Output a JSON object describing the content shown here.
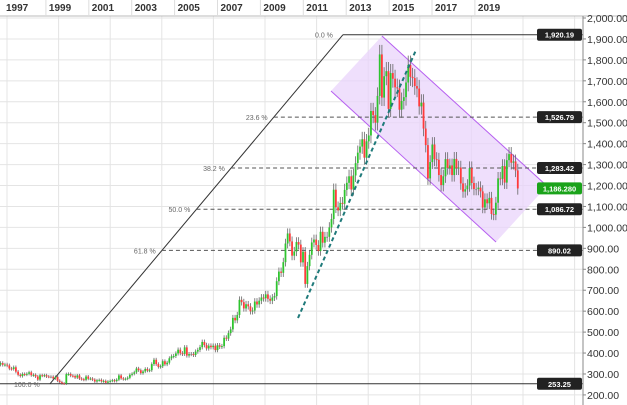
{
  "chart_data": {
    "type": "candlestick",
    "title": "",
    "x_tick_labels": [
      "1997",
      "1999",
      "2001",
      "2003",
      "2005",
      "2007",
      "2009",
      "2011",
      "2013",
      "2015",
      "2017",
      "2019"
    ],
    "y_tick_labels": [
      "2,000.00",
      "1,900.00",
      "1,800.00",
      "1,700.00",
      "1,600.00",
      "1,500.00",
      "1,400.00",
      "1,300.00",
      "1,200.00",
      "1,100.00",
      "1,000.00",
      "900.00",
      "800.00",
      "700.00",
      "600.00",
      "500.00",
      "400.00",
      "300.00",
      "200.00"
    ],
    "ylim": [
      200,
      2000
    ],
    "grid": true,
    "colors": {
      "up": "#2fc42f",
      "down": "#ff3b3b",
      "neutral": "#888888",
      "channel_fill": "#e9d4fb",
      "channel_line": "#b65ff0",
      "trendline": "#1f7a7a",
      "last_price": "#1aa31a",
      "tag": "#222222"
    },
    "series_start": "1997-01",
    "frequency": "monthly",
    "closes": [
      355,
      345,
      352,
      344,
      345,
      341,
      326,
      324,
      332,
      311,
      296,
      290,
      300,
      297,
      301,
      308,
      294,
      296,
      288,
      273,
      294,
      292,
      294,
      288,
      287,
      287,
      279,
      286,
      268,
      261,
      255,
      254,
      299,
      300,
      292,
      290,
      283,
      293,
      278,
      275,
      272,
      288,
      277,
      278,
      273,
      264,
      270,
      272,
      265,
      267,
      258,
      264,
      267,
      270,
      266,
      273,
      293,
      279,
      275,
      277,
      282,
      296,
      301,
      308,
      326,
      318,
      304,
      312,
      324,
      316,
      318,
      347,
      368,
      347,
      334,
      337,
      361,
      346,
      354,
      375,
      384,
      386,
      398,
      416,
      399,
      396,
      427,
      388,
      395,
      395,
      391,
      407,
      415,
      428,
      453,
      438,
      422,
      435,
      428,
      435,
      414,
      437,
      430,
      433,
      473,
      469,
      495,
      513,
      568,
      556,
      582,
      654,
      643,
      613,
      633,
      623,
      599,
      603,
      646,
      632,
      650,
      665,
      662,
      680,
      659,
      650,
      665,
      672,
      743,
      789,
      783,
      834,
      923,
      971,
      933,
      865,
      885,
      930,
      918,
      833,
      884,
      730,
      815,
      869,
      928,
      942,
      916,
      887,
      979,
      927,
      955,
      955,
      1000,
      1040,
      1180,
      1096,
      1081,
      1117,
      1113,
      1179,
      1213,
      1244,
      1181,
      1248,
      1307,
      1357,
      1386,
      1421,
      1333,
      1411,
      1439,
      1556,
      1536,
      1500,
      1628,
      1826,
      1620,
      1722,
      1746,
      1566,
      1737,
      1710,
      1669,
      1664,
      1562,
      1604,
      1622,
      1692,
      1776,
      1719,
      1713,
      1675,
      1663,
      1578,
      1596,
      1472,
      1393,
      1234,
      1312,
      1396,
      1326,
      1323,
      1250,
      1202,
      1244,
      1326,
      1284,
      1296,
      1250,
      1327,
      1282,
      1286,
      1210,
      1171,
      1182,
      1200,
      1283,
      1212,
      1183,
      1183,
      1190,
      1172,
      1095,
      1134,
      1115,
      1141,
      1064,
      1061,
      1118,
      1234,
      1232,
      1293,
      1214,
      1321,
      1350,
      1309,
      1315,
      1272,
      1186
    ],
    "fibonacci": [
      {
        "label": "0.0 %",
        "value": 1920.19,
        "tag": "1,920.19"
      },
      {
        "label": "23.6 %",
        "value": 1526.79,
        "tag": "1,526.79"
      },
      {
        "label": "38.2 %",
        "value": 1283.42,
        "tag": "1,283.42"
      },
      {
        "label": "50.0 %",
        "value": 1086.72,
        "tag": "1,086.72"
      },
      {
        "label": "61.8 %",
        "value": 890.02,
        "tag": "890.02"
      },
      {
        "label": "100.0 %",
        "value": 253.25,
        "tag": "253.25"
      }
    ],
    "last_price": {
      "value": 1186.28,
      "tag": "1,186.280"
    }
  }
}
